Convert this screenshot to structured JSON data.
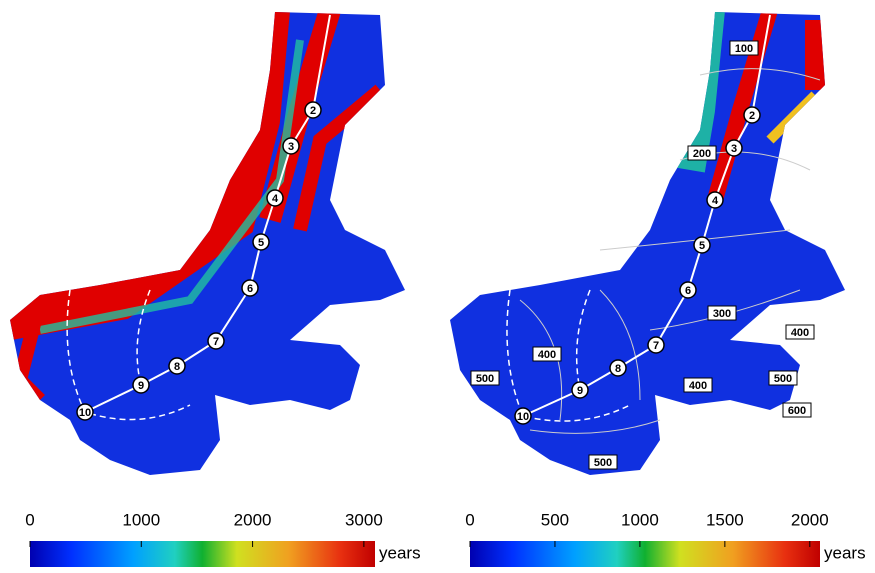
{
  "panels": [
    {
      "flowline_markers": [
        "2",
        "3",
        "4",
        "5",
        "6",
        "7",
        "8",
        "9",
        "10"
      ],
      "contour_labels": [],
      "colorbar": {
        "lim": [
          0,
          3100
        ],
        "ticks": [
          0,
          1000,
          2000,
          3000
        ],
        "unit": "years"
      }
    },
    {
      "flowline_markers": [
        "2",
        "3",
        "4",
        "5",
        "6",
        "7",
        "8",
        "9",
        "10"
      ],
      "contour_labels": [
        "100",
        "200",
        "300",
        "400",
        "400",
        "400",
        "500",
        "500",
        "600",
        "500"
      ],
      "colorbar": {
        "lim": [
          0,
          2060
        ],
        "ticks": [
          0,
          500,
          1000,
          1500,
          2000
        ],
        "unit": "years"
      }
    }
  ]
}
